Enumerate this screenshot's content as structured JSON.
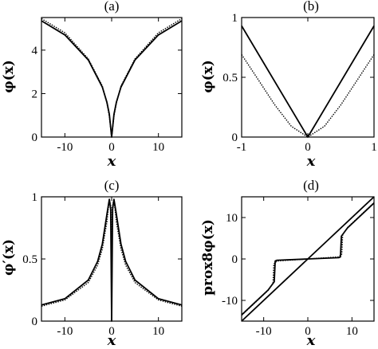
{
  "chart_data": [
    {
      "type": "line",
      "panel_label": "(a)",
      "xlabel": "x",
      "ylabel": "φ(x)",
      "xlim": [
        -15,
        15
      ],
      "ylim": [
        0,
        5.5
      ],
      "xticks": [
        -10,
        0,
        10
      ],
      "yticks": [
        0,
        2,
        4
      ],
      "series": [
        {
          "style": "solid",
          "x": [
            -15,
            -10,
            -5,
            -2,
            -1,
            -0.5,
            0,
            0.5,
            1,
            2,
            5,
            10,
            15
          ],
          "y": [
            5.35,
            4.7,
            3.55,
            2.3,
            1.6,
            1.05,
            0,
            1.05,
            1.6,
            2.3,
            3.55,
            4.7,
            5.35
          ]
        },
        {
          "style": "dotted",
          "x": [
            -15,
            -10,
            -5,
            -2,
            -1,
            -0.5,
            0,
            0.5,
            1,
            2,
            5,
            10,
            15
          ],
          "y": [
            5.45,
            4.8,
            3.6,
            2.35,
            1.55,
            0.95,
            0,
            0.95,
            1.55,
            2.35,
            3.6,
            4.8,
            5.45
          ]
        }
      ]
    },
    {
      "type": "line",
      "panel_label": "(b)",
      "xlabel": "x",
      "ylabel": "φ(x)",
      "xlim": [
        -1,
        1
      ],
      "ylim": [
        0,
        1
      ],
      "xticks": [
        -1,
        0,
        1
      ],
      "yticks": [
        0,
        0.5,
        1
      ],
      "series": [
        {
          "style": "solid",
          "x": [
            -1,
            0,
            1
          ],
          "y": [
            0.93,
            0,
            0.93
          ]
        },
        {
          "style": "dotted",
          "x": [
            -1,
            -0.75,
            -0.5,
            -0.25,
            0,
            0.25,
            0.5,
            0.75,
            1
          ],
          "y": [
            0.69,
            0.48,
            0.27,
            0.09,
            0,
            0.09,
            0.27,
            0.48,
            0.69
          ]
        }
      ]
    },
    {
      "type": "line",
      "panel_label": "(c)",
      "xlabel": "x",
      "ylabel": "φ′(x)",
      "xlim": [
        -15,
        15
      ],
      "ylim": [
        0,
        1
      ],
      "xticks": [
        -10,
        0,
        10
      ],
      "yticks": [
        0,
        0.5,
        1
      ],
      "series": [
        {
          "style": "solid",
          "x": [
            -15,
            -10,
            -5,
            -3,
            -2,
            -1,
            -0.5,
            -0.2,
            0,
            0.2,
            0.5,
            1,
            2,
            3,
            5,
            10,
            15
          ],
          "y": [
            0.13,
            0.18,
            0.33,
            0.48,
            0.62,
            0.86,
            0.98,
            0.9,
            0,
            0.9,
            0.98,
            0.86,
            0.62,
            0.48,
            0.33,
            0.18,
            0.13
          ]
        },
        {
          "style": "dotted",
          "x": [
            -15,
            -10,
            -5,
            -3,
            -2,
            -1,
            -0.5,
            -0.15,
            0,
            0.15,
            0.5,
            1,
            2,
            3,
            5,
            10,
            15
          ],
          "y": [
            0.12,
            0.17,
            0.31,
            0.45,
            0.58,
            0.8,
            0.98,
            0.92,
            0,
            0.92,
            0.98,
            0.8,
            0.58,
            0.45,
            0.31,
            0.17,
            0.12
          ]
        }
      ]
    },
    {
      "type": "line",
      "panel_label": "(d)",
      "xlabel": "x",
      "ylabel": "prox8φ(x)",
      "xlim": [
        -15,
        15
      ],
      "ylim": [
        -15,
        15
      ],
      "xticks": [
        -10,
        0,
        10
      ],
      "yticks": [
        -10,
        0,
        10
      ],
      "series": [
        {
          "style": "solid",
          "x": [
            -15,
            15
          ],
          "y": [
            -15,
            15
          ]
        },
        {
          "style": "solid",
          "x": [
            -15,
            -9,
            -7.6,
            -7.4,
            -7,
            0,
            7,
            7.4,
            7.6,
            9,
            15
          ],
          "y": [
            -13.5,
            -7.5,
            -5.5,
            -0.5,
            -0.3,
            0,
            0.3,
            0.5,
            5.5,
            7.5,
            13.5
          ]
        },
        {
          "style": "dotted",
          "x": [
            -15,
            -9,
            -7.9,
            -7.7,
            -7,
            0,
            7,
            7.7,
            7.9,
            9,
            15
          ],
          "y": [
            -13.6,
            -7.6,
            -5.9,
            -1.2,
            -0.5,
            0,
            0.5,
            1.2,
            5.9,
            7.6,
            13.6
          ]
        }
      ]
    }
  ]
}
